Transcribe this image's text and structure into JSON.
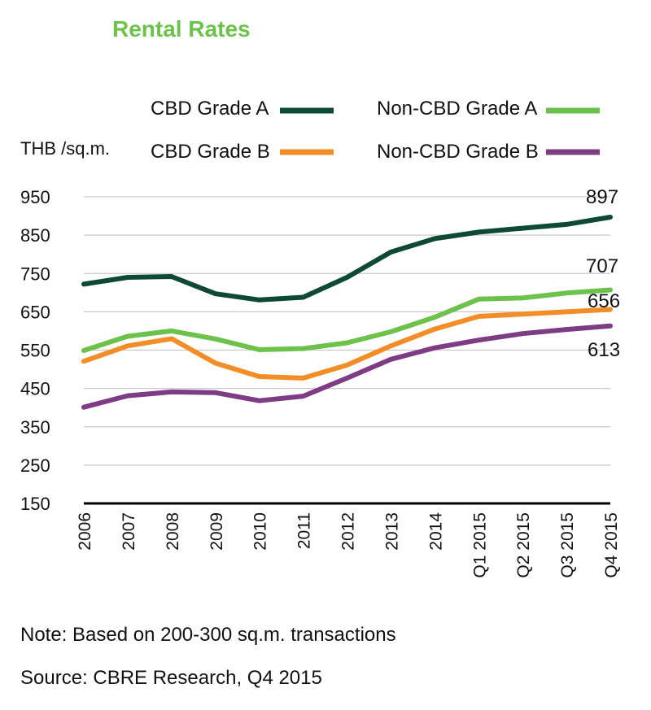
{
  "chart_data": {
    "type": "line",
    "title": "Rental Rates",
    "ylabel": "THB /sq.m.",
    "xlabel": "",
    "ylim": [
      150,
      950
    ],
    "y_ticks": [
      950,
      850,
      750,
      650,
      550,
      450,
      350,
      250,
      150
    ],
    "categories": [
      "2006",
      "2007",
      "2008",
      "2009",
      "2010",
      "2011",
      "2012",
      "2013",
      "2014",
      "Q1 2015",
      "Q2 2015",
      "Q3 2015",
      "Q4 2015"
    ],
    "grid": true,
    "legend_position": "top",
    "series": [
      {
        "name": "CBD Grade A",
        "color": "#0e4a33",
        "values": [
          722,
          740,
          742,
          697,
          681,
          688,
          740,
          806,
          841,
          858,
          868,
          878,
          897
        ]
      },
      {
        "name": "Non-CBD Grade A",
        "color": "#6cc24a",
        "values": [
          549,
          586,
          600,
          579,
          551,
          554,
          569,
          598,
          636,
          683,
          686,
          699,
          707
        ]
      },
      {
        "name": "CBD Grade B",
        "color": "#f38d28",
        "values": [
          521,
          561,
          580,
          516,
          481,
          477,
          511,
          561,
          605,
          638,
          644,
          650,
          656
        ]
      },
      {
        "name": "Non-CBD Grade B",
        "color": "#7d3c83",
        "values": [
          401,
          431,
          441,
          439,
          418,
          430,
          477,
          526,
          556,
          576,
          593,
          604,
          613
        ]
      }
    ],
    "annotations": [
      "897",
      "707",
      "656",
      "613"
    ],
    "notes": {
      "note": "Note: Based on 200-300 sq.m. transactions",
      "source": "Source: CBRE Research, Q4 2015"
    }
  }
}
